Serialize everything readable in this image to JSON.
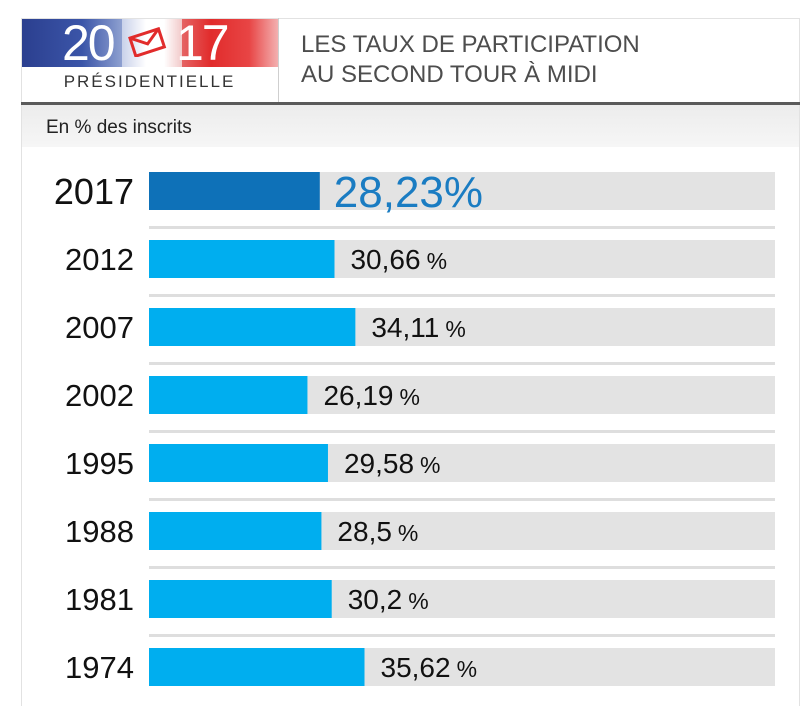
{
  "header": {
    "logo": {
      "year_left": "20",
      "year_right": "17",
      "brand": "PRÉSIDENTIELLE",
      "icon": "envelope-icon"
    },
    "title_line1": "LES TAUX DE PARTICIPATION",
    "title_line2": "AU SECOND TOUR À MIDI"
  },
  "subtitle": "En % des inscrits",
  "colors": {
    "highlight_bar": "#0e71b8",
    "highlight_text": "#1a7cc2",
    "bar": "#00aeef",
    "track": "#e3e3e3",
    "text": "#111111"
  },
  "chart_data": {
    "type": "bar",
    "orientation": "horizontal",
    "categories": [
      "2017",
      "2012",
      "2007",
      "2002",
      "1995",
      "1988",
      "1981",
      "1974"
    ],
    "values": [
      28.23,
      30.66,
      34.11,
      26.19,
      29.58,
      28.5,
      30.2,
      35.62
    ],
    "labels": [
      "28,23%",
      "30,66",
      "34,11",
      "26,19",
      "29,58",
      "28,5",
      "30,2",
      "35,62"
    ],
    "unit": "%",
    "highlight_index": 0,
    "xlim": [
      0,
      100
    ],
    "grid": false,
    "legend": "none"
  }
}
